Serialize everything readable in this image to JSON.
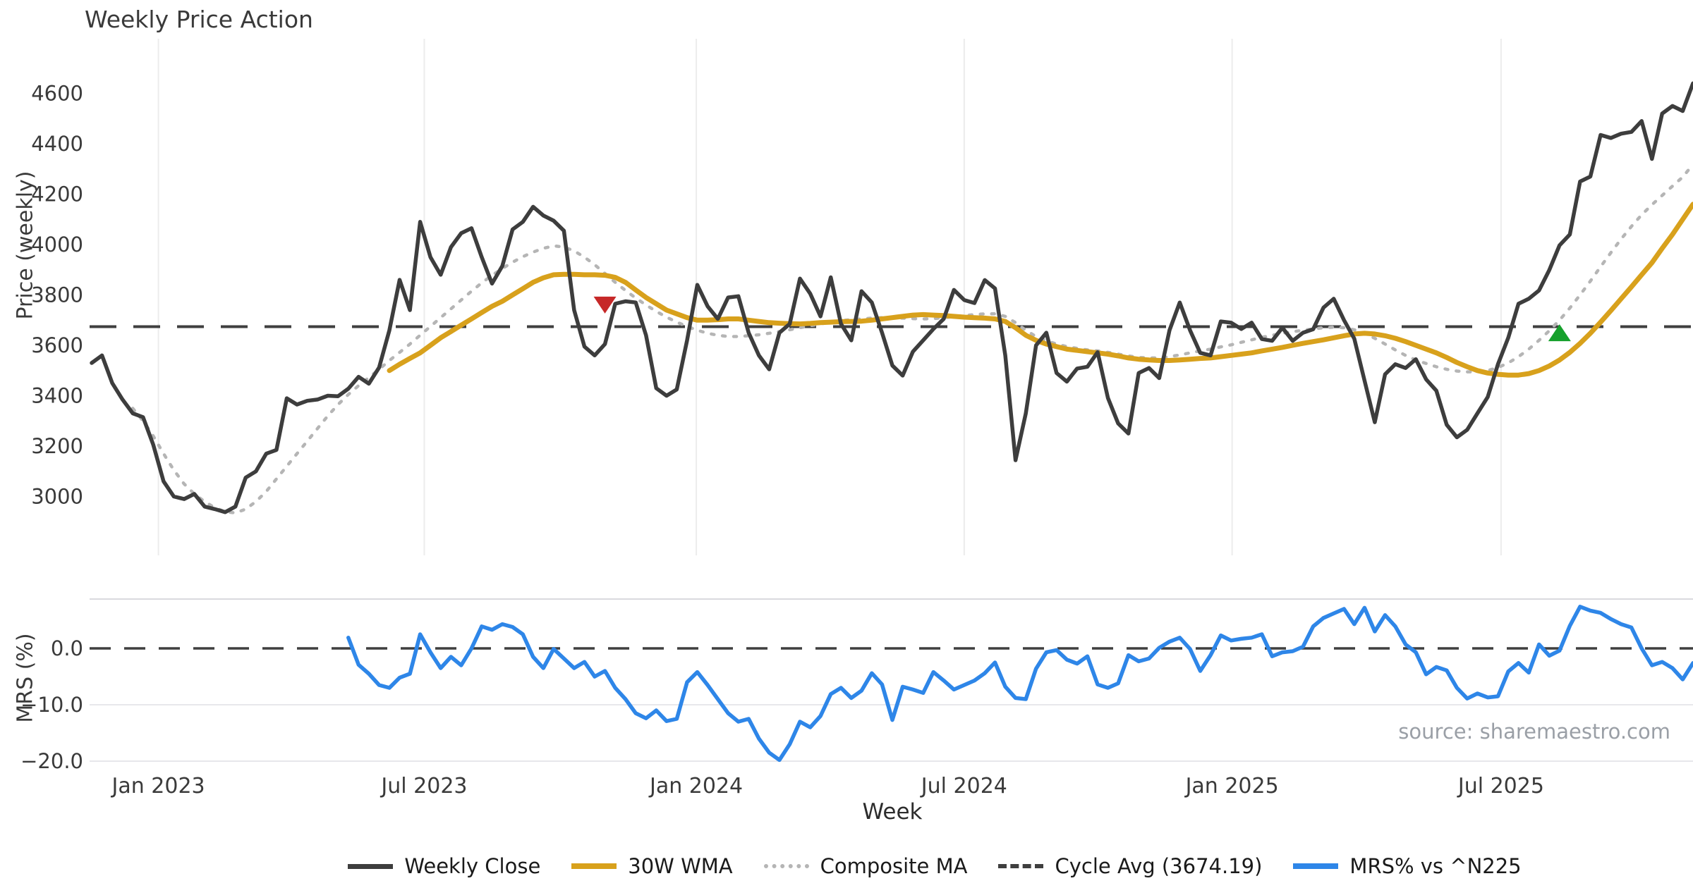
{
  "title": "Weekly Price Action",
  "source_note": "source: sharemaestro.com",
  "colors": {
    "close": "#3d3d3d",
    "wma30": "#d8a11c",
    "composite": "#b5b5b5",
    "cycle_avg": "#3f3f3f",
    "mrs": "#2e86e8",
    "marker_sell": "#c62828",
    "marker_buy": "#16a02c",
    "grid_vertical": "#ececec",
    "grid_horizontal": "#e7e7eb",
    "panel_spine": "#d9d9de",
    "tick_text": "#3a3a3a",
    "source_text": "#9a9fa6"
  },
  "chart_data": {
    "type": "line",
    "title": "Weekly Price Action",
    "xlabel": "Week",
    "total_weeks": 157,
    "x_ticks": [
      {
        "label": "Jan 2023",
        "index": 6.5
      },
      {
        "label": "Jul 2023",
        "index": 32.4
      },
      {
        "label": "Jan 2024",
        "index": 58.9
      },
      {
        "label": "Jul 2024",
        "index": 85.0
      },
      {
        "label": "Jan 2025",
        "index": 111.1
      },
      {
        "label": "Jul 2025",
        "index": 137.3
      }
    ],
    "price_panel": {
      "ylabel": "Price (weekly)",
      "ylim": [
        2850,
        4720
      ],
      "yticks": [
        3000,
        3200,
        3400,
        3600,
        3800,
        4000,
        4200,
        4400,
        4600
      ],
      "grid": "vertical-only"
    },
    "mrs_panel": {
      "ylabel": "MRS (%)",
      "ylim": [
        -22,
        9
      ],
      "yticks": [
        {
          "value": 0,
          "label": "0.0"
        },
        {
          "value": -10,
          "label": "−10.0"
        },
        {
          "value": -20,
          "label": "−20.0"
        }
      ],
      "grid": "horizontal-only"
    },
    "cycle_avg": 3674.19,
    "legend": [
      {
        "label": "Weekly Close",
        "style": "solid-dark"
      },
      {
        "label": "30W WMA",
        "style": "solid-gold"
      },
      {
        "label": "Composite MA",
        "style": "dotted-gray"
      },
      {
        "label": "Cycle Avg (3674.19)",
        "style": "dashed-dark"
      },
      {
        "label": "MRS% vs ^N225",
        "style": "solid-blue"
      }
    ],
    "markers": [
      {
        "name": "sell-signal",
        "shape": "triangle-down",
        "color": "#c62828",
        "index": 50,
        "value": 3760
      },
      {
        "name": "buy-signal",
        "shape": "triangle-up",
        "color": "#16a02c",
        "index": 143,
        "value": 3650
      }
    ],
    "series": [
      {
        "name": "Weekly Close",
        "panel": "price",
        "start_index": 0,
        "values": [
          3530,
          3560,
          3450,
          3385,
          3330,
          3315,
          3205,
          3060,
          3000,
          2990,
          3010,
          2960,
          2950,
          2938,
          2960,
          3075,
          3100,
          3170,
          3185,
          3390,
          3365,
          3380,
          3385,
          3400,
          3398,
          3428,
          3475,
          3448,
          3512,
          3660,
          3860,
          3740,
          4090,
          3950,
          3880,
          3990,
          4045,
          4065,
          3950,
          3845,
          3915,
          4060,
          4090,
          4150,
          4115,
          4095,
          4055,
          3740,
          3595,
          3560,
          3605,
          3765,
          3775,
          3770,
          3640,
          3430,
          3400,
          3425,
          3620,
          3840,
          3755,
          3705,
          3790,
          3795,
          3650,
          3560,
          3505,
          3650,
          3685,
          3865,
          3805,
          3715,
          3870,
          3685,
          3620,
          3815,
          3770,
          3650,
          3520,
          3480,
          3575,
          3620,
          3665,
          3705,
          3820,
          3780,
          3768,
          3859,
          3826,
          3560,
          3144,
          3330,
          3600,
          3650,
          3490,
          3456,
          3508,
          3515,
          3573,
          3391,
          3290,
          3250,
          3490,
          3510,
          3470,
          3660,
          3770,
          3660,
          3570,
          3560,
          3695,
          3690,
          3665,
          3690,
          3625,
          3618,
          3670,
          3618,
          3650,
          3664,
          3750,
          3785,
          3700,
          3627,
          3460,
          3295,
          3485,
          3525,
          3510,
          3545,
          3465,
          3420,
          3285,
          3235,
          3265,
          3330,
          3395,
          3525,
          3630,
          3765,
          3785,
          3818,
          3899,
          3997,
          4040,
          4250,
          4270,
          4435,
          4423,
          4440,
          4447,
          4490,
          4340,
          4520,
          4550,
          4530,
          4640
        ]
      },
      {
        "name": "30W WMA",
        "panel": "price",
        "start_index": 29,
        "values": [
          3500,
          3525,
          3548,
          3570,
          3600,
          3630,
          3655,
          3680,
          3705,
          3730,
          3755,
          3775,
          3800,
          3825,
          3850,
          3868,
          3880,
          3882,
          3882,
          3880,
          3880,
          3878,
          3870,
          3850,
          3820,
          3790,
          3765,
          3740,
          3725,
          3710,
          3700,
          3700,
          3702,
          3705,
          3705,
          3700,
          3695,
          3690,
          3688,
          3686,
          3685,
          3687,
          3690,
          3692,
          3694,
          3695,
          3696,
          3700,
          3705,
          3710,
          3715,
          3720,
          3722,
          3720,
          3718,
          3715,
          3712,
          3710,
          3708,
          3705,
          3695,
          3670,
          3640,
          3620,
          3605,
          3595,
          3585,
          3580,
          3575,
          3570,
          3565,
          3558,
          3550,
          3545,
          3542,
          3540,
          3540,
          3542,
          3545,
          3548,
          3550,
          3555,
          3560,
          3565,
          3570,
          3578,
          3585,
          3592,
          3600,
          3608,
          3615,
          3622,
          3630,
          3638,
          3645,
          3648,
          3645,
          3638,
          3628,
          3615,
          3600,
          3585,
          3570,
          3552,
          3532,
          3515,
          3500,
          3490,
          3485,
          3482,
          3482,
          3488,
          3500,
          3518,
          3542,
          3572,
          3608,
          3648,
          3692,
          3738,
          3785,
          3832,
          3880,
          3928,
          3985,
          4040,
          4100,
          4160
        ]
      },
      {
        "name": "Composite MA",
        "panel": "price",
        "start_index": 4,
        "values": [
          3350,
          3300,
          3240,
          3170,
          3105,
          3050,
          3010,
          2980,
          2955,
          2940,
          2935,
          2950,
          2980,
          3020,
          3070,
          3120,
          3170,
          3220,
          3270,
          3320,
          3365,
          3405,
          3440,
          3472,
          3505,
          3540,
          3572,
          3605,
          3640,
          3675,
          3710,
          3745,
          3780,
          3815,
          3848,
          3878,
          3905,
          3930,
          3952,
          3970,
          3985,
          3995,
          3990,
          3975,
          3950,
          3920,
          3885,
          3850,
          3818,
          3788,
          3760,
          3735,
          3712,
          3692,
          3675,
          3660,
          3648,
          3640,
          3635,
          3635,
          3638,
          3642,
          3648,
          3655,
          3662,
          3670,
          3678,
          3685,
          3692,
          3698,
          3702,
          3705,
          3708,
          3710,
          3710,
          3708,
          3706,
          3705,
          3706,
          3710,
          3714,
          3718,
          3722,
          3725,
          3725,
          3715,
          3690,
          3660,
          3635,
          3618,
          3605,
          3595,
          3588,
          3582,
          3578,
          3572,
          3565,
          3558,
          3552,
          3550,
          3550,
          3555,
          3562,
          3570,
          3578,
          3585,
          3594,
          3602,
          3612,
          3622,
          3632,
          3640,
          3648,
          3654,
          3660,
          3665,
          3670,
          3672,
          3670,
          3662,
          3648,
          3628,
          3605,
          3582,
          3560,
          3542,
          3528,
          3515,
          3505,
          3498,
          3495,
          3495,
          3500,
          3512,
          3530,
          3555,
          3585,
          3620,
          3658,
          3700,
          3748,
          3800,
          3855,
          3912,
          3968,
          4022,
          4072,
          4118,
          4158,
          4195,
          4232,
          4268,
          4318
        ]
      },
      {
        "name": "MRS% vs ^N225",
        "panel": "mrs",
        "start_index": 25,
        "values": [
          1.9,
          -2.9,
          -4.5,
          -6.5,
          -7.0,
          -5.2,
          -4.5,
          2.5,
          -0.7,
          -3.5,
          -1.5,
          -3.0,
          0.0,
          3.9,
          3.3,
          4.3,
          3.8,
          2.5,
          -1.5,
          -3.5,
          -0.1,
          -1.8,
          -3.5,
          -2.4,
          -5.0,
          -4.0,
          -7.0,
          -9.0,
          -11.5,
          -12.4,
          -11.0,
          -12.9,
          -12.5,
          -6.0,
          -4.2,
          -6.5,
          -9.0,
          -11.5,
          -13.0,
          -12.5,
          -16.0,
          -18.5,
          -19.8,
          -17.0,
          -13.0,
          -14.0,
          -12.0,
          -8.1,
          -7.0,
          -8.8,
          -7.5,
          -4.4,
          -6.4,
          -12.7,
          -6.8,
          -7.3,
          -7.9,
          -4.2,
          -5.7,
          -7.3,
          -6.5,
          -5.7,
          -4.4,
          -2.5,
          -6.8,
          -8.8,
          -9.0,
          -3.6,
          -0.7,
          -0.3,
          -2.0,
          -2.7,
          -1.4,
          -6.4,
          -7.0,
          -6.2,
          -1.2,
          -2.3,
          -1.8,
          0.1,
          1.2,
          1.9,
          -0.1,
          -4.0,
          -1.2,
          2.3,
          1.4,
          1.7,
          1.9,
          2.5,
          -1.4,
          -0.7,
          -0.5,
          0.3,
          3.9,
          5.4,
          6.2,
          7.0,
          4.3,
          7.2,
          3.0,
          5.9,
          3.9,
          0.7,
          -0.7,
          -4.6,
          -3.3,
          -3.9,
          -7.0,
          -8.9,
          -8.0,
          -8.7,
          -8.5,
          -4.1,
          -2.6,
          -4.3,
          0.7,
          -1.3,
          -0.4,
          4.0,
          7.4,
          6.7,
          6.3,
          5.2,
          4.3,
          3.7,
          0.0,
          -3.0,
          -2.4,
          -3.5,
          -5.5,
          -2.6
        ]
      }
    ]
  }
}
